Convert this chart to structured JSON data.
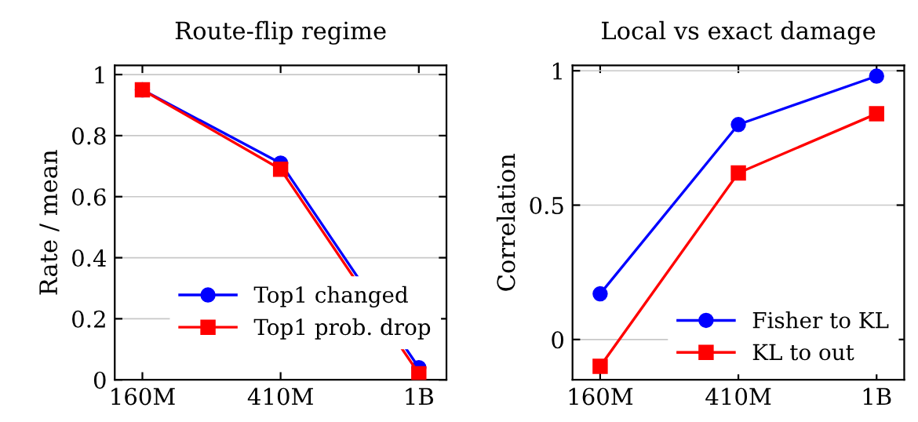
{
  "chart_data": [
    {
      "type": "line",
      "title": "Route-flip regime",
      "ylabel": "Rate / mean",
      "categories": [
        "160M",
        "410M",
        "1B"
      ],
      "series": [
        {
          "name": "Top1 changed",
          "color": "#0000ff",
          "marker": "circle",
          "values": [
            0.95,
            0.71,
            0.04
          ]
        },
        {
          "name": "Top1 prob. drop",
          "color": "#ff0000",
          "marker": "square",
          "values": [
            0.95,
            0.69,
            0.02
          ]
        }
      ],
      "ylim": [
        0,
        1.03
      ],
      "yticks": [
        0,
        0.2,
        0.4,
        0.6,
        0.8,
        1
      ],
      "grid": "y",
      "legend": "bottom right"
    },
    {
      "type": "line",
      "title": "Local vs exact damage",
      "ylabel": "Correlation",
      "categories": [
        "160M",
        "410M",
        "1B"
      ],
      "series": [
        {
          "name": "Fisher to KL",
          "color": "#0000ff",
          "marker": "circle",
          "values": [
            0.17,
            0.8,
            0.98
          ]
        },
        {
          "name": "KL to out",
          "color": "#ff0000",
          "marker": "square",
          "values": [
            -0.1,
            0.62,
            0.84
          ]
        }
      ],
      "ylim": [
        -0.15,
        1.02
      ],
      "yticks": [
        0,
        0.5,
        1
      ],
      "grid": "y",
      "legend": "bottom right"
    }
  ]
}
